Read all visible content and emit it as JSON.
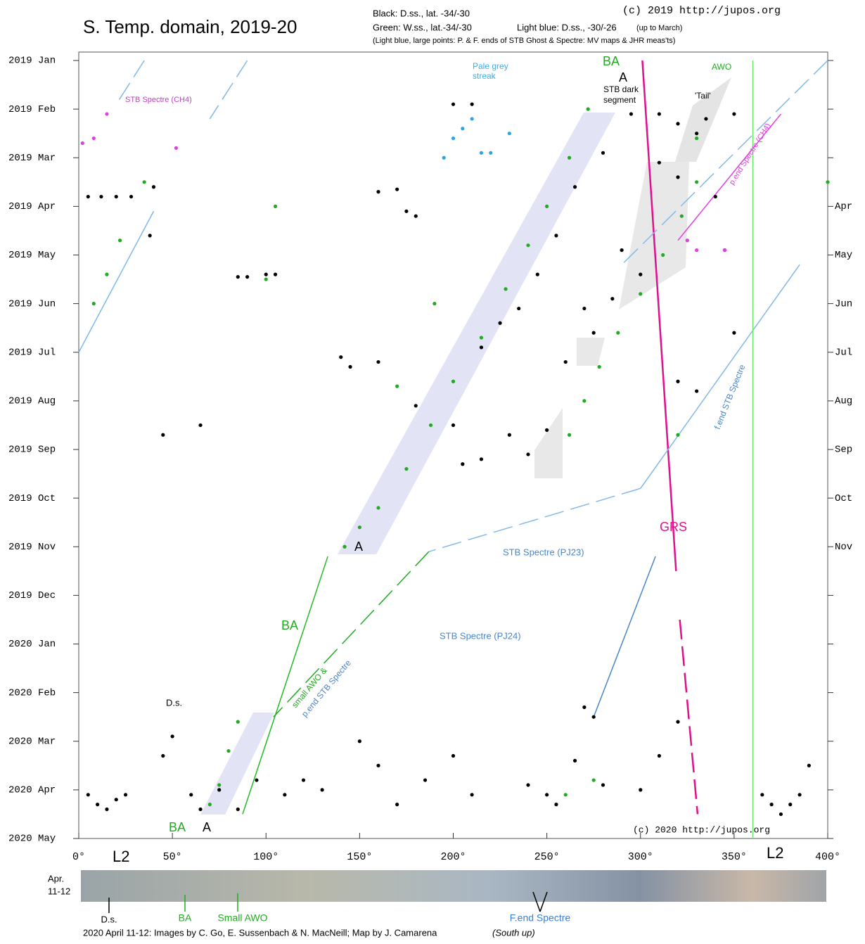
{
  "chart_data": {
    "type": "scatter",
    "title": "S. Temp. domain, 2019-20",
    "legend_text": [
      "Black: D.ss., lat. -34/-30",
      "Green:  W.ss., lat.-34/-30",
      "Light blue:  D.ss., -30/-26",
      "(up to March)",
      "(Light blue, large points: P. & F. ends of STB Ghost & Spectre: MV maps & JHR meas'ts)"
    ],
    "credits": [
      "(c) 2019 http://jupos.org",
      "(c) 2020 http://jupos.org"
    ],
    "xlim": [
      0,
      400
    ],
    "xticks": [
      {
        "value": 0,
        "label": "0°"
      },
      {
        "value": 50,
        "label": "50°"
      },
      {
        "value": 100,
        "label": "100°"
      },
      {
        "value": 150,
        "label": "150°"
      },
      {
        "value": 200,
        "label": "200°"
      },
      {
        "value": 250,
        "label": "250°"
      },
      {
        "value": 300,
        "label": "300°"
      },
      {
        "value": 350,
        "label": "350°"
      },
      {
        "value": 400,
        "label": "400°"
      }
    ],
    "ylim": [
      0,
      16
    ],
    "yticks": [
      {
        "value": 0,
        "label": "2019 Jan"
      },
      {
        "value": 1,
        "label": "2019 Feb"
      },
      {
        "value": 2,
        "label": "2019 Mar"
      },
      {
        "value": 3,
        "label": "2019 Apr"
      },
      {
        "value": 4,
        "label": "2019 May"
      },
      {
        "value": 5,
        "label": "2019 Jun"
      },
      {
        "value": 6,
        "label": "2019 Jul"
      },
      {
        "value": 7,
        "label": "2019 Aug"
      },
      {
        "value": 8,
        "label": "2019 Sep"
      },
      {
        "value": 9,
        "label": "2019 Oct"
      },
      {
        "value": 10,
        "label": "2019 Nov"
      },
      {
        "value": 11,
        "label": "2019 Dec"
      },
      {
        "value": 12,
        "label": "2020 Jan"
      },
      {
        "value": 13,
        "label": "2020 Feb"
      },
      {
        "value": 14,
        "label": "2020 Mar"
      },
      {
        "value": 15,
        "label": "2020 Apr"
      },
      {
        "value": 16,
        "label": "2020 May"
      }
    ],
    "right_yticks": [
      {
        "value": 3,
        "label": "Apr"
      },
      {
        "value": 4,
        "label": "May"
      },
      {
        "value": 5,
        "label": "Jun"
      },
      {
        "value": 6,
        "label": "Jul"
      },
      {
        "value": 7,
        "label": "Aug"
      },
      {
        "value": 8,
        "label": "Sep"
      },
      {
        "value": 9,
        "label": "Oct"
      },
      {
        "value": 10,
        "label": "Nov"
      }
    ],
    "series": [
      {
        "color": "#000000",
        "x": [
          5,
          12,
          20,
          28,
          40,
          38,
          85,
          90,
          100,
          105,
          160,
          170,
          175,
          180,
          200,
          210,
          45,
          65,
          140,
          145,
          160,
          180,
          200,
          205,
          215,
          230,
          240,
          250,
          260,
          270,
          275,
          285,
          290,
          300,
          310,
          320,
          330,
          340,
          345,
          350,
          330,
          320,
          215,
          225,
          235,
          245,
          255,
          265,
          280,
          295,
          310,
          320,
          335,
          350,
          5,
          10,
          15,
          20,
          25,
          45,
          50,
          60,
          65,
          75,
          85,
          95,
          110,
          120,
          130,
          150,
          160,
          170,
          185,
          200,
          210,
          240,
          250,
          255,
          265,
          270,
          275,
          280,
          300,
          310,
          320,
          365,
          370,
          375,
          380,
          385,
          390
        ],
        "y": [
          2.8,
          2.8,
          2.8,
          2.8,
          2.6,
          3.6,
          4.45,
          4.45,
          4.4,
          4.4,
          2.7,
          2.65,
          3.1,
          3.2,
          0.9,
          0.9,
          7.7,
          7.5,
          6.1,
          6.3,
          6.2,
          7.1,
          7.5,
          8.3,
          8.2,
          7.7,
          8.1,
          7.6,
          6.2,
          5.1,
          5.6,
          4.9,
          3.9,
          4.4,
          2.1,
          2.4,
          1.5,
          2.8,
          3.9,
          5.6,
          6.8,
          6.6,
          5.9,
          5.4,
          5.1,
          4.4,
          3.6,
          2.6,
          1.9,
          1.1,
          1.1,
          1.3,
          1.2,
          1.1,
          15.1,
          15.3,
          15.4,
          15.2,
          15.1,
          14.3,
          13.9,
          15.1,
          15.4,
          15.0,
          15.4,
          14.8,
          15.1,
          14.8,
          15.0,
          14.0,
          14.5,
          15.3,
          14.8,
          14.3,
          15.1,
          14.9,
          15.1,
          15.3,
          14.4,
          13.3,
          13.5,
          14.9,
          15.0,
          14.3,
          13.6,
          15.1,
          15.3,
          15.5,
          15.3,
          15.1,
          14.5
        ]
      },
      {
        "color": "#22aa22",
        "x": [
          272,
          262,
          250,
          240,
          228,
          215,
          200,
          188,
          175,
          160,
          150,
          142,
          330,
          322,
          312,
          300,
          288,
          278,
          270,
          262,
          15,
          22,
          35,
          8,
          105,
          100,
          170,
          190,
          320,
          400,
          330,
          70,
          75,
          80,
          85,
          260,
          275
        ],
        "y": [
          1.0,
          2.0,
          3.0,
          3.8,
          4.7,
          5.7,
          6.6,
          7.5,
          8.4,
          9.2,
          9.6,
          10.0,
          2.5,
          3.2,
          4.0,
          4.8,
          5.6,
          6.3,
          7.0,
          7.7,
          4.4,
          3.7,
          2.5,
          5.0,
          3.0,
          4.5,
          6.7,
          5.0,
          7.7,
          2.5,
          1.6,
          15.3,
          14.9,
          14.2,
          13.6,
          15.1,
          14.8
        ]
      },
      {
        "color": "#2fa4e0",
        "x": [
          195,
          200,
          205,
          210,
          215,
          220,
          230
        ],
        "y": [
          2.0,
          1.6,
          1.4,
          1.2,
          1.9,
          1.9,
          1.5
        ]
      },
      {
        "color": "#e040e0",
        "x": [
          2,
          8,
          15,
          52,
          325,
          330,
          345
        ],
        "y": [
          1.7,
          1.6,
          1.1,
          1.8,
          3.7,
          3.9,
          3.9
        ]
      }
    ],
    "lines": [
      {
        "color": "#e0108a",
        "x": [
          301,
          319
        ],
        "y": [
          0,
          10.5
        ],
        "dash": false
      },
      {
        "color": "#e0108a",
        "x": [
          321,
          330.5
        ],
        "y": [
          11.5,
          15.5
        ],
        "dash": true
      },
      {
        "color": "#22bb22",
        "x": [
          133,
          87.5
        ],
        "y": [
          10.2,
          15.5
        ],
        "dash": false
      },
      {
        "color": "#22aa22",
        "x": [
          187,
          104
        ],
        "y": [
          10.1,
          13.5
        ],
        "dash": true
      },
      {
        "color": "#7fb8ea",
        "x": [
          0,
          40
        ],
        "y": [
          6.0,
          3.1
        ],
        "dash": false
      },
      {
        "color": "#7fb8ea",
        "x": [
          400,
          290
        ],
        "y": [
          0,
          4.2
        ],
        "dash": true
      },
      {
        "color": "#7fb8ea",
        "x": [
          385,
          300
        ],
        "y": [
          4.2,
          8.8
        ],
        "dash": false
      },
      {
        "color": "#7fb8ea",
        "x": [
          300,
          187
        ],
        "y": [
          8.8,
          10.1
        ],
        "dash": true
      },
      {
        "color": "#4a86c8",
        "x": [
          308,
          275
        ],
        "y": [
          10.2,
          13.5
        ],
        "dash": false
      },
      {
        "color": "#e040e0",
        "x": [
          320,
          375
        ],
        "y": [
          3.7,
          1.1
        ],
        "dash": false
      },
      {
        "color": "#7fb8ea",
        "x": [
          90,
          70
        ],
        "y": [
          0,
          1.2
        ],
        "dash": true
      },
      {
        "color": "#7fb8ea",
        "x": [
          35,
          20
        ],
        "y": [
          0,
          0.9
        ],
        "dash": true
      },
      {
        "color": "#66ee66",
        "x": [
          360,
          360
        ],
        "y": [
          0,
          16
        ],
        "dash": false
      }
    ],
    "annotations": [
      "STB Spectre (CH4)",
      "Pale grey",
      "streak",
      "BA",
      "A",
      "STB dark",
      "segment",
      "AWO",
      "'Tail'",
      "p.end Spectre (CH4)",
      "A",
      "GRS",
      "STB Spectre (PJ23)",
      "STB Spectre (PJ24)",
      "BA",
      "small AWO &",
      "p.end STB Spectre",
      "f.end STB Spectre",
      "D.s.",
      "BA",
      "A",
      "L2",
      "L2"
    ],
    "strip_labels": [
      "Apr.",
      "11-12",
      "D.s.",
      "BA",
      "Small AWO",
      "F.end Spectre"
    ],
    "footer": "2020 April 11-12:  Images by C. Go, E. Sussenbach & N. MacNeill;  Map by J. Camarena",
    "footer_note": "(South up)"
  }
}
